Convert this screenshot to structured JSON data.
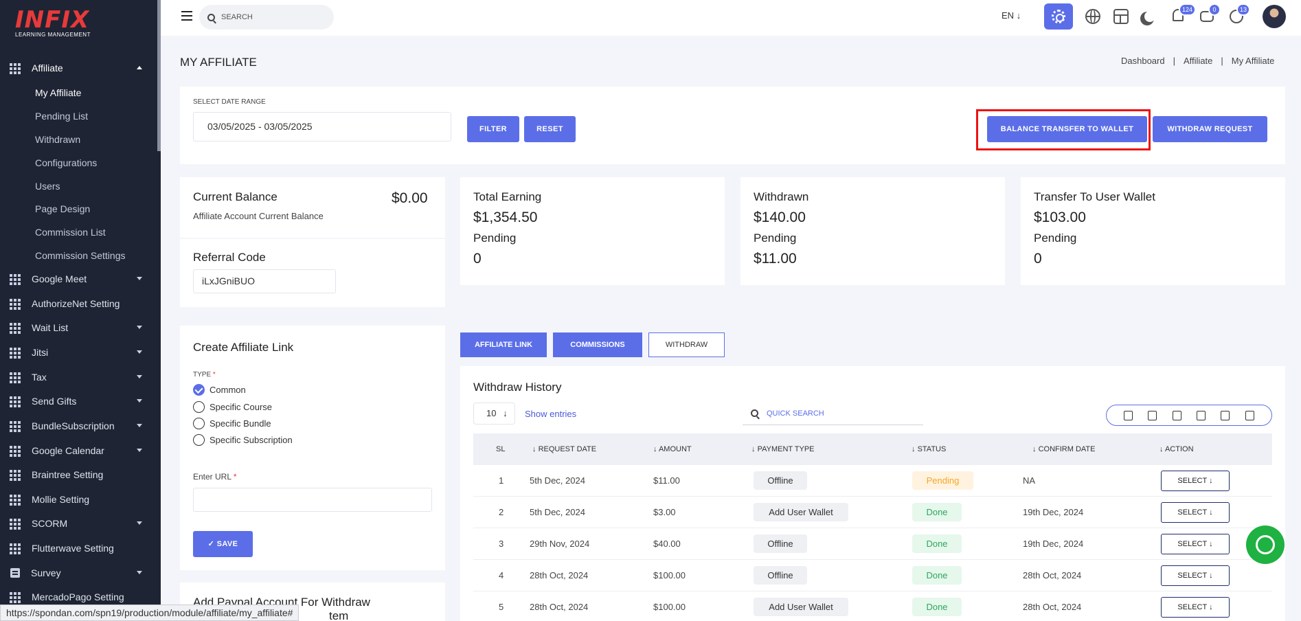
{
  "brand": {
    "logo_main": "INFIX",
    "logo_sub": "LEARNING MANAGEMENT"
  },
  "sidebar": {
    "groups": [
      {
        "label": "Affiliate",
        "expanded": true
      },
      {
        "label": "Google Meet"
      },
      {
        "label": "AuthorizeNet Setting"
      },
      {
        "label": "Wait List"
      },
      {
        "label": "Jitsi"
      },
      {
        "label": "Tax"
      },
      {
        "label": "Send Gifts"
      },
      {
        "label": "BundleSubscription"
      },
      {
        "label": "Google Calendar"
      },
      {
        "label": "Braintree Setting"
      },
      {
        "label": "Mollie Setting"
      },
      {
        "label": "SCORM"
      },
      {
        "label": "Flutterwave Setting"
      },
      {
        "label": "Survey"
      },
      {
        "label": "MercadoPago Setting"
      }
    ],
    "affiliate_items": [
      "My Affiliate",
      "Pending List",
      "Withdrawn",
      "Configurations",
      "Users",
      "Page Design",
      "Commission List",
      "Commission Settings"
    ]
  },
  "topbar": {
    "search_placeholder": "SEARCH",
    "language": "EN",
    "badges": {
      "notifications": "124",
      "messages": "0",
      "whatsapp": "13"
    }
  },
  "page": {
    "title": "MY AFFILIATE",
    "breadcrumb": [
      "Dashboard",
      "Affiliate",
      "My Affiliate"
    ]
  },
  "filter": {
    "label": "SELECT DATE RANGE",
    "date_range": "03/05/2025 - 03/05/2025",
    "filter_btn": "FILTER",
    "reset_btn": "RESET",
    "balance_btn": "BALANCE TRANSFER TO WALLET",
    "withdraw_btn": "WITHDRAW REQUEST"
  },
  "balance": {
    "title": "Current Balance",
    "amount": "$0.00",
    "subtitle": "Affiliate Account Current Balance"
  },
  "referral": {
    "title": "Referral Code",
    "code": "iLxJGniBUO"
  },
  "stats": [
    {
      "title": "Total Earning",
      "value": "$1,354.50",
      "pending_label": "Pending",
      "pending": "0"
    },
    {
      "title": "Withdrawn",
      "value": "$140.00",
      "pending_label": "Pending",
      "pending": "$11.00"
    },
    {
      "title": "Transfer To User Wallet",
      "value": "$103.00",
      "pending_label": "Pending",
      "pending": "0"
    }
  ],
  "create_link": {
    "title": "Create Affiliate Link",
    "type_label": "TYPE",
    "types": [
      "Common",
      "Specific Course",
      "Specific Bundle",
      "Specific Subscription"
    ],
    "selected": "Common",
    "url_label": "Enter URL",
    "save_btn": "SAVE"
  },
  "paypal": {
    "title_line1": "Add Paypal Account For Withdraw",
    "title_line2": "tem"
  },
  "tabs": [
    "AFFILIATE LINK",
    "COMMISSIONS",
    "WITHDRAW"
  ],
  "history": {
    "title": "Withdraw History",
    "entries": "10",
    "show_entries": "Show entries",
    "quick_search": "QUICK SEARCH",
    "columns": [
      "SL",
      "REQUEST DATE",
      "AMOUNT",
      "PAYMENT TYPE",
      "STATUS",
      "CONFIRM DATE",
      "ACTION"
    ],
    "rows": [
      {
        "sl": "1",
        "date": "5th Dec, 2024",
        "amount": "$11.00",
        "type": "Offline",
        "status": "Pending",
        "confirm": "NA",
        "action": "SELECT"
      },
      {
        "sl": "2",
        "date": "5th Dec, 2024",
        "amount": "$3.00",
        "type": "Add User Wallet",
        "status": "Done",
        "confirm": "19th Dec, 2024",
        "action": "SELECT"
      },
      {
        "sl": "3",
        "date": "29th Nov, 2024",
        "amount": "$40.00",
        "type": "Offline",
        "status": "Done",
        "confirm": "19th Dec, 2024",
        "action": "SELECT"
      },
      {
        "sl": "4",
        "date": "28th Oct, 2024",
        "amount": "$100.00",
        "type": "Offline",
        "status": "Done",
        "confirm": "28th Oct, 2024",
        "action": "SELECT"
      },
      {
        "sl": "5",
        "date": "28th Oct, 2024",
        "amount": "$100.00",
        "type": "Add User Wallet",
        "status": "Done",
        "confirm": "28th Oct, 2024",
        "action": "SELECT"
      }
    ]
  },
  "statusbar": "https://spondan.com/spn19/production/module/affiliate/my_affiliate#"
}
